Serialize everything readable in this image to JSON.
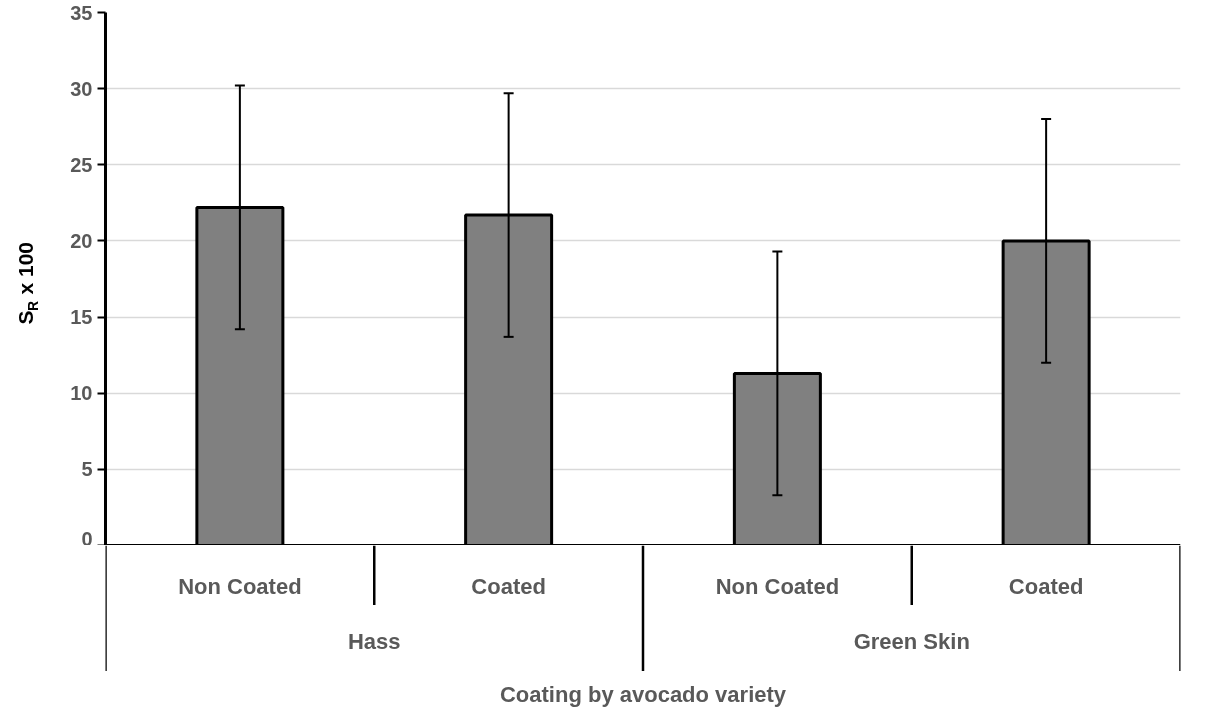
{
  "chart_data": {
    "type": "bar",
    "categories": [
      "Non Coated",
      "Coated",
      "Non Coated",
      "Coated"
    ],
    "values": [
      22.2,
      21.7,
      11.3,
      20.0
    ],
    "errors": [
      8,
      8,
      8,
      8
    ],
    "color": "#808080",
    "ylim": [
      0,
      35
    ],
    "yticks": [
      0,
      5,
      10,
      15,
      20,
      25,
      30,
      35
    ],
    "grid": "y",
    "xlabel": "Coating by avocado variety",
    "ylabel": "S$_{R}$ x 100",
    "annotations": [
      "Hass",
      "Green Skin"
    ]
  }
}
